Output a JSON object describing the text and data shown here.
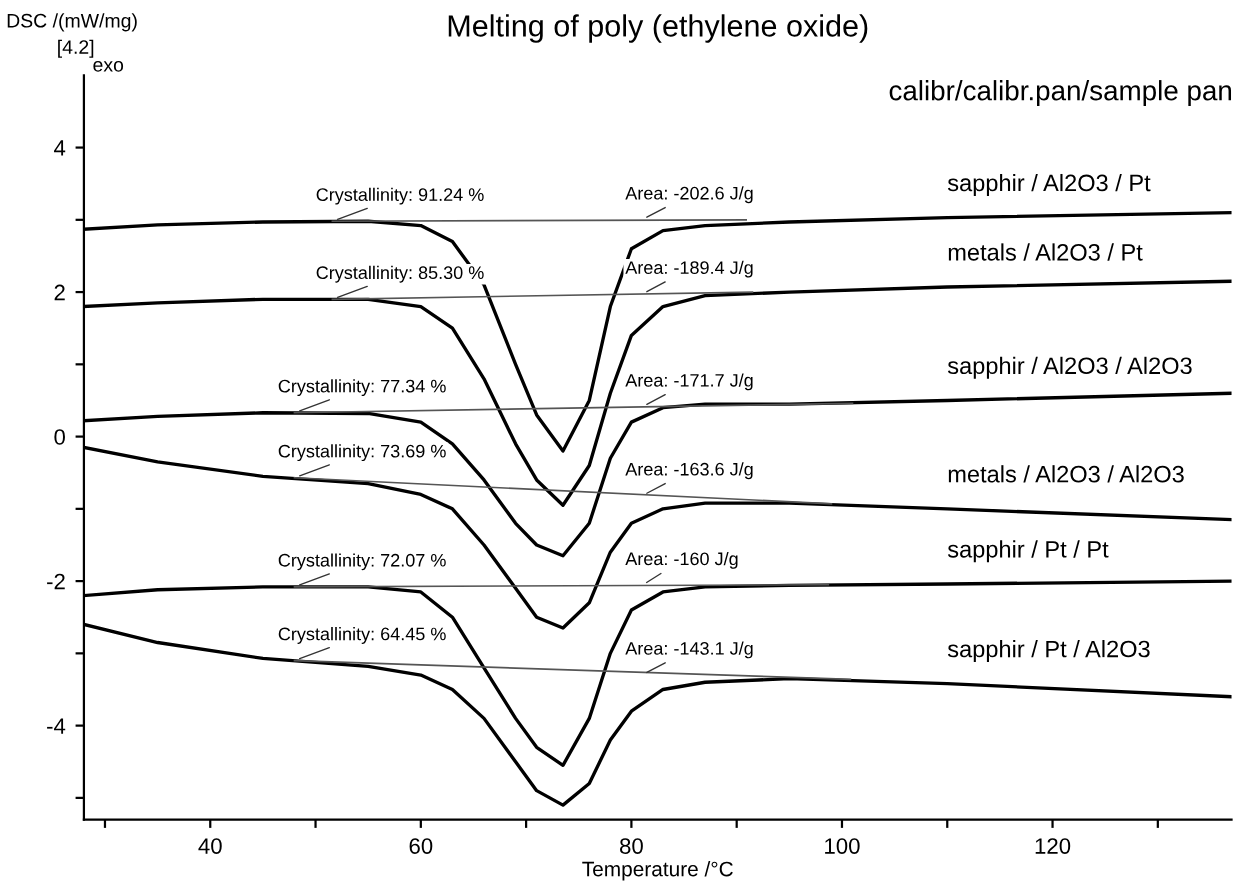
{
  "chart_data": {
    "type": "line",
    "title": "Melting of poly (ethylene oxide)",
    "xlabel": "Temperature /°C",
    "ylabel": "DSC /(mW/mg)",
    "legend_title": "calibr/calibr.pan/sample pan",
    "x": [
      28,
      35,
      45,
      55,
      60,
      63,
      66,
      69,
      71,
      73.5,
      76,
      78,
      80,
      83,
      87,
      95,
      110,
      137
    ],
    "series": [
      {
        "name": "sapphir / Al2O3 / Pt",
        "color": "#000000",
        "values": [
          2.87,
          2.93,
          2.97,
          2.98,
          2.92,
          2.7,
          2.1,
          1.0,
          0.3,
          -0.2,
          0.5,
          1.8,
          2.6,
          2.85,
          2.92,
          2.97,
          3.03,
          3.1
        ]
      },
      {
        "name": "metals / Al2O3 / Pt",
        "color": "#000000",
        "values": [
          1.8,
          1.85,
          1.9,
          1.9,
          1.8,
          1.5,
          0.8,
          -0.1,
          -0.6,
          -0.95,
          -0.4,
          0.6,
          1.4,
          1.8,
          1.95,
          2.0,
          2.07,
          2.15
        ]
      },
      {
        "name": "sapphir / Al2O3 / Al2O3",
        "color": "#000000",
        "values": [
          0.22,
          0.28,
          0.33,
          0.32,
          0.2,
          -0.1,
          -0.6,
          -1.2,
          -1.5,
          -1.65,
          -1.2,
          -0.3,
          0.2,
          0.4,
          0.45,
          0.45,
          0.5,
          0.6
        ]
      },
      {
        "name": "metals / Al2O3 / Al2O3",
        "color": "#000000",
        "values": [
          -0.15,
          -0.35,
          -0.55,
          -0.65,
          -0.8,
          -1.0,
          -1.5,
          -2.1,
          -2.5,
          -2.65,
          -2.3,
          -1.6,
          -1.2,
          -1.0,
          -0.92,
          -0.92,
          -1.0,
          -1.15
        ]
      },
      {
        "name": "sapphir / Pt / Pt",
        "color": "#000000",
        "values": [
          -2.2,
          -2.12,
          -2.08,
          -2.08,
          -2.15,
          -2.5,
          -3.2,
          -3.9,
          -4.3,
          -4.55,
          -3.9,
          -3.0,
          -2.4,
          -2.15,
          -2.08,
          -2.06,
          -2.04,
          -2.0
        ]
      },
      {
        "name": "sapphir / Pt / Al2O3",
        "color": "#000000",
        "values": [
          -2.6,
          -2.85,
          -3.07,
          -3.18,
          -3.3,
          -3.5,
          -3.9,
          -4.5,
          -4.9,
          -5.1,
          -4.8,
          -4.2,
          -3.8,
          -3.5,
          -3.4,
          -3.35,
          -3.42,
          -3.6
        ]
      },
      {
        "type": "line",
        "color": "#555555",
        "x": [
          51.6,
          90.9
        ],
        "values": [
          2.98,
          3.0
        ]
      },
      {
        "type": "line",
        "color": "#555555",
        "x": [
          51.6,
          91.5
        ],
        "values": [
          1.9,
          2.0
        ]
      },
      {
        "type": "line",
        "color": "#555555",
        "x": [
          48,
          101
        ],
        "values": [
          0.33,
          0.46
        ]
      },
      {
        "type": "line",
        "color": "#555555",
        "x": [
          48,
          99
        ],
        "values": [
          -0.57,
          -0.93
        ]
      },
      {
        "type": "line",
        "color": "#555555",
        "x": [
          48,
          98.7
        ],
        "values": [
          -2.08,
          -2.05
        ]
      },
      {
        "type": "line",
        "color": "#555555",
        "x": [
          48,
          100.8
        ],
        "values": [
          -3.1,
          -3.36
        ]
      }
    ],
    "annotations": [
      {
        "text": "Crystallinity: 91.24 %",
        "x": 51.6,
        "y": 2.98
      },
      {
        "text": "Crystallinity: 85.30 %",
        "x": 51.6,
        "y": 1.9
      },
      {
        "text": "Crystallinity: 77.34 %",
        "x": 48,
        "y": 0.33
      },
      {
        "text": "Crystallinity: 73.69 %",
        "x": 48,
        "y": -0.57
      },
      {
        "text": "Crystallinity: 72.07 %",
        "x": 48,
        "y": -2.08
      },
      {
        "text": "Crystallinity: 64.45 %",
        "x": 48,
        "y": -3.1
      },
      {
        "text": "Area: -202.6 J/g",
        "x": 81,
        "y": 3.0
      },
      {
        "text": "Area: -189.4 J/g",
        "x": 81,
        "y": 1.97
      },
      {
        "text": "Area: -171.7 J/g",
        "x": 81,
        "y": 0.41
      },
      {
        "text": "Area: -163.6 J/g",
        "x": 81,
        "y": -0.82
      },
      {
        "text": "Area: -160 J/g",
        "x": 81,
        "y": -2.06
      },
      {
        "text": "Area: -143.1 J/g",
        "x": 81,
        "y": -3.3
      },
      "[4.2]",
      "exo"
    ],
    "xlim": [
      28,
      137
    ],
    "ylim": [
      -5.3,
      5
    ],
    "xticks": [
      {
        "value": 30,
        "label": null
      },
      40,
      {
        "value": 50,
        "label": null
      },
      60,
      {
        "value": 70,
        "label": null
      },
      80,
      {
        "value": 90,
        "label": null
      },
      100,
      {
        "value": 110,
        "label": null
      },
      120,
      {
        "value": 130,
        "label": null
      }
    ],
    "yticks": [
      {
        "value": -5,
        "label": null
      },
      -4,
      {
        "value": -3,
        "label": null
      },
      -2,
      {
        "value": -1,
        "label": null
      },
      0,
      {
        "value": 1,
        "label": null
      },
      2,
      {
        "value": 3,
        "label": null
      },
      4
    ],
    "grid": false,
    "legend": false,
    "marker": "none",
    "line_style": "solid"
  }
}
